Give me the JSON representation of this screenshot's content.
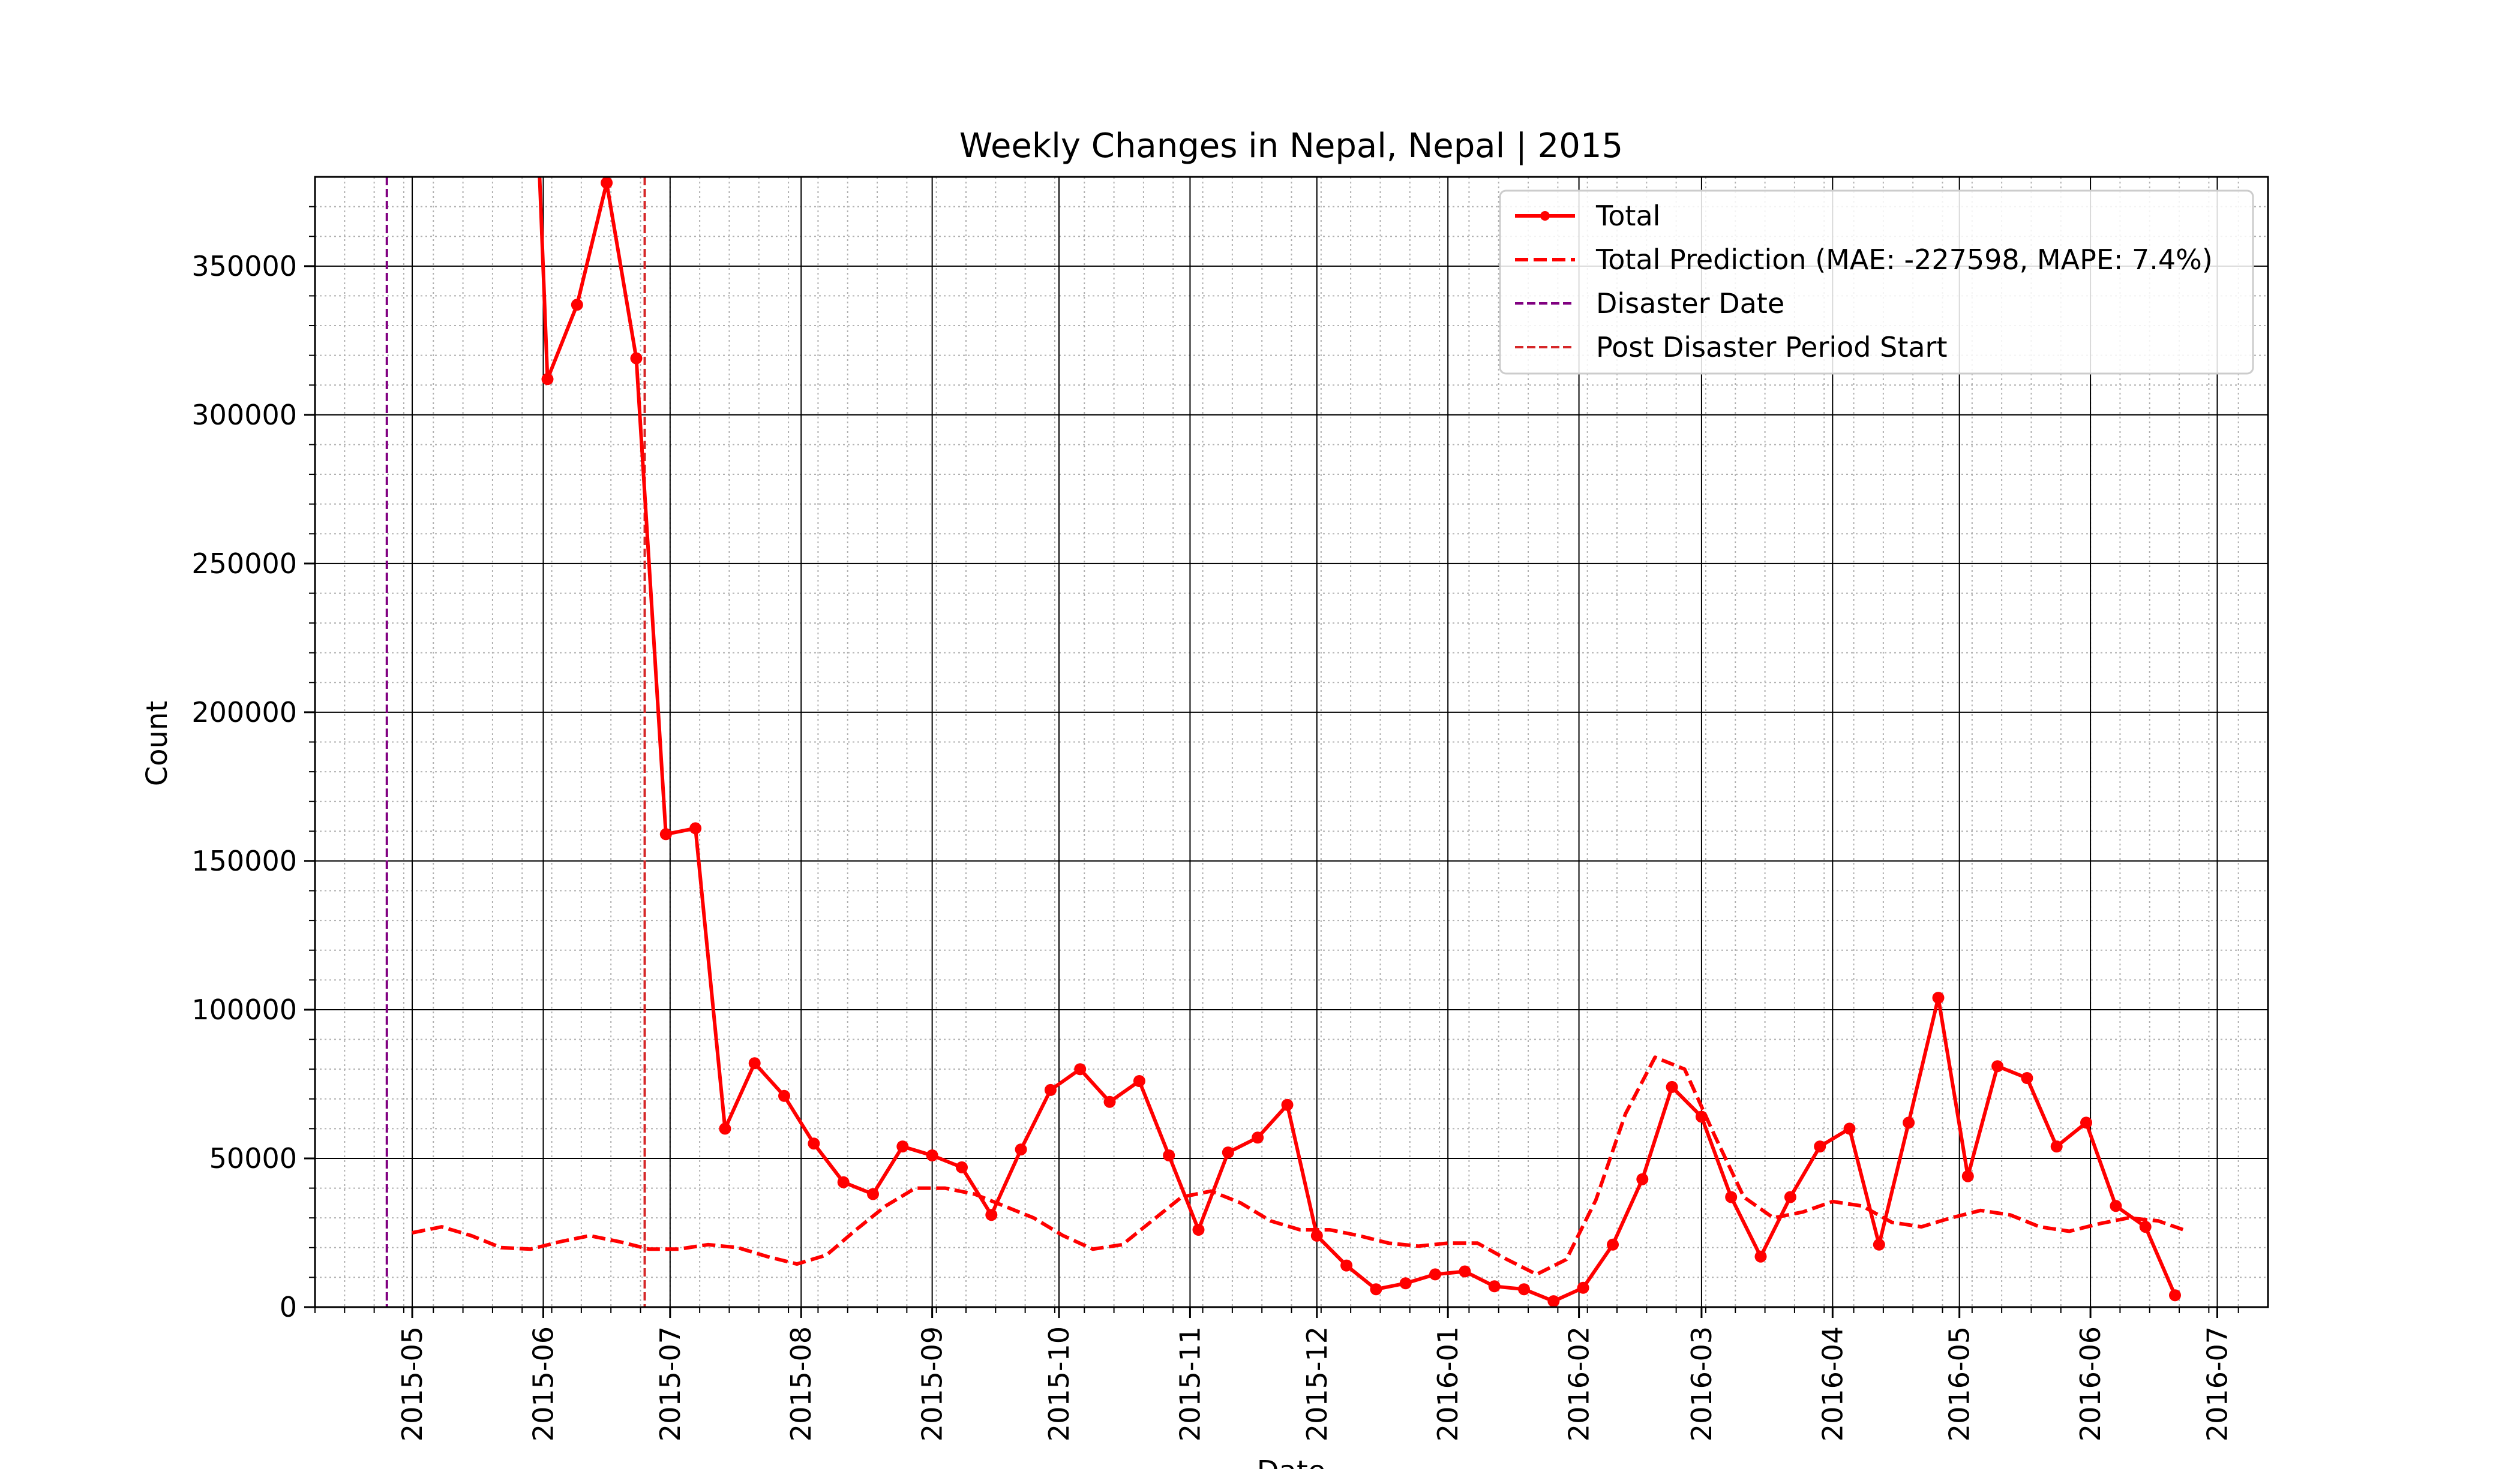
{
  "chart_data": {
    "type": "line",
    "title": "Weekly Changes in Nepal, Nepal | 2015",
    "xlabel": "Date",
    "ylabel": "Count",
    "ylim": [
      0,
      380000
    ],
    "xlim": [
      "2015-04-08",
      "2016-07-13"
    ],
    "grid": true,
    "legend_position": "top-right",
    "y_ticks": [
      "0",
      "50000",
      "100000",
      "150000",
      "200000",
      "250000",
      "300000",
      "350000"
    ],
    "x_ticks": [
      "2015-05",
      "2015-06",
      "2015-07",
      "2015-08",
      "2015-09",
      "2015-10",
      "2015-11",
      "2015-12",
      "2016-01",
      "2016-02",
      "2016-03",
      "2016-04",
      "2016-05",
      "2016-06",
      "2016-07"
    ],
    "series": [
      {
        "name": "Total",
        "style": "solid-marker",
        "color": "#ff0000",
        "x": [
          "2015-05-31",
          "2015-06-02",
          "2015-06-09",
          "2015-06-16",
          "2015-06-23",
          "2015-06-30",
          "2015-07-07",
          "2015-07-14",
          "2015-07-21",
          "2015-07-28",
          "2015-08-04",
          "2015-08-11",
          "2015-08-18",
          "2015-08-25",
          "2015-09-01",
          "2015-09-08",
          "2015-09-15",
          "2015-09-22",
          "2015-09-29",
          "2015-10-06",
          "2015-10-13",
          "2015-10-20",
          "2015-10-27",
          "2015-11-03",
          "2015-11-10",
          "2015-11-17",
          "2015-11-24",
          "2015-12-01",
          "2015-12-08",
          "2015-12-15",
          "2015-12-22",
          "2015-12-29",
          "2016-01-05",
          "2016-01-12",
          "2016-01-19",
          "2016-01-26",
          "2016-02-02",
          "2016-02-09",
          "2016-02-16",
          "2016-02-23",
          "2016-03-01",
          "2016-03-08",
          "2016-03-15",
          "2016-03-22",
          "2016-03-29",
          "2016-04-05",
          "2016-04-12",
          "2016-04-19",
          "2016-04-26",
          "2016-05-03",
          "2016-05-10",
          "2016-05-17",
          "2016-05-24",
          "2016-05-31",
          "2016-06-07",
          "2016-06-14",
          "2016-06-21"
        ],
        "values": [
          385000,
          312000,
          337000,
          378000,
          319000,
          159000,
          161000,
          60000,
          82000,
          71000,
          55000,
          42000,
          38000,
          54000,
          51000,
          47000,
          31000,
          53000,
          73000,
          80000,
          69000,
          76000,
          51000,
          26000,
          52000,
          57000,
          68000,
          24000,
          14000,
          6000,
          8000,
          11000,
          12000,
          7000,
          6000,
          2000,
          6500,
          21000,
          43000,
          74000,
          64000,
          37000,
          17000,
          37000,
          54000,
          60000,
          21000,
          62000,
          104000,
          44000,
          81000,
          77000,
          54000,
          62000,
          34000,
          27000,
          4000
        ]
      },
      {
        "name": "Total Prediction (MAE: -227598, MAPE: 7.4%)",
        "style": "dashed",
        "color": "#ff0000",
        "x": [
          "2015-05-01",
          "2015-05-08",
          "2015-05-15",
          "2015-05-22",
          "2015-05-29",
          "2015-06-05",
          "2015-06-12",
          "2015-06-19",
          "2015-06-26",
          "2015-07-03",
          "2015-07-10",
          "2015-07-17",
          "2015-07-24",
          "2015-07-31",
          "2015-08-07",
          "2015-08-14",
          "2015-08-21",
          "2015-08-28",
          "2015-09-04",
          "2015-09-11",
          "2015-09-18",
          "2015-09-25",
          "2015-10-02",
          "2015-10-09",
          "2015-10-16",
          "2015-10-23",
          "2015-10-30",
          "2015-11-06",
          "2015-11-13",
          "2015-11-20",
          "2015-11-27",
          "2015-12-04",
          "2015-12-11",
          "2015-12-18",
          "2015-12-25",
          "2016-01-01",
          "2016-01-08",
          "2016-01-15",
          "2016-01-22",
          "2016-01-29",
          "2016-02-05",
          "2016-02-12",
          "2016-02-19",
          "2016-02-26",
          "2016-03-04",
          "2016-03-11",
          "2016-03-18",
          "2016-03-25",
          "2016-04-01",
          "2016-04-08",
          "2016-04-15",
          "2016-04-22",
          "2016-04-29",
          "2016-05-06",
          "2016-05-13",
          "2016-05-20",
          "2016-05-27",
          "2016-06-03",
          "2016-06-10",
          "2016-06-17",
          "2016-06-24"
        ],
        "values": [
          25000,
          27000,
          24000,
          20000,
          19500,
          22000,
          24000,
          22000,
          19500,
          19500,
          21000,
          20000,
          17000,
          14500,
          17500,
          26000,
          34000,
          40000,
          40000,
          38000,
          34000,
          30000,
          24000,
          19500,
          21000,
          29000,
          37000,
          39000,
          35000,
          29000,
          26000,
          26000,
          24000,
          21500,
          20500,
          21500,
          21500,
          16000,
          11000,
          16000,
          36000,
          65000,
          84000,
          80000,
          58000,
          37000,
          30000,
          32000,
          35500,
          34000,
          28500,
          27000,
          30000,
          32500,
          31000,
          27000,
          25500,
          28000,
          30000,
          29000,
          25500
        ]
      }
    ],
    "vlines": [
      {
        "name": "Disaster Date",
        "x": "2015-04-25",
        "color": "#800080",
        "style": "dashed"
      },
      {
        "name": "Post Disaster Period Start",
        "x": "2015-06-25",
        "color": "#d62728",
        "style": "dashed"
      }
    ]
  }
}
